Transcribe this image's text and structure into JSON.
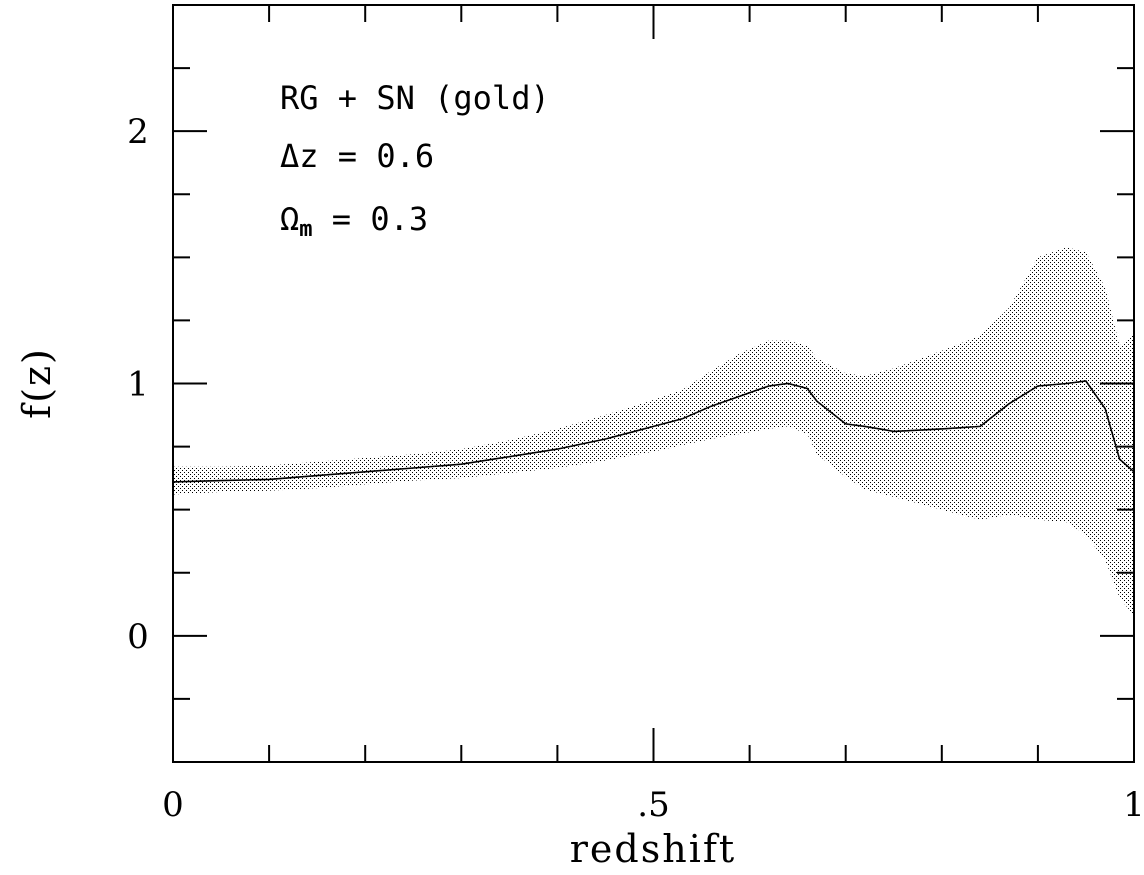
{
  "chart_data": {
    "type": "area",
    "xlabel": "redshift",
    "ylabel": "f(z)",
    "xlim": [
      0,
      1
    ],
    "ylim": [
      -0.5,
      2.5
    ],
    "x_ticks": {
      "major": [
        0,
        0.5,
        1
      ],
      "major_labels": [
        "0",
        ".5",
        "1"
      ],
      "minor": [
        0.1,
        0.2,
        0.3,
        0.4,
        0.6,
        0.7,
        0.8,
        0.9
      ]
    },
    "y_ticks": {
      "major": [
        0,
        1,
        2
      ],
      "major_labels": [
        "0",
        "1",
        "2"
      ],
      "minor": [
        -0.25,
        0.25,
        0.5,
        0.75,
        1.25,
        1.5,
        1.75,
        2.25
      ]
    },
    "annotations": {
      "line1": "RG + SN (gold)",
      "line2": "Δz = 0.6",
      "line3_symbol": "Ω",
      "line3_sub": "m",
      "line3_rest": " = 0.3"
    },
    "series": [
      {
        "x": [
          0.0,
          0.05,
          0.1,
          0.15,
          0.2,
          0.25,
          0.3,
          0.35,
          0.4,
          0.45,
          0.5,
          0.53,
          0.56,
          0.59,
          0.62,
          0.64,
          0.66,
          0.67,
          0.7,
          0.72,
          0.75,
          0.8,
          0.84,
          0.87,
          0.9,
          0.93,
          0.95,
          0.97,
          0.985,
          1.0
        ],
        "y": [
          0.61,
          0.615,
          0.62,
          0.635,
          0.65,
          0.665,
          0.68,
          0.71,
          0.74,
          0.78,
          0.83,
          0.86,
          0.91,
          0.95,
          0.99,
          1.0,
          0.98,
          0.93,
          0.84,
          0.83,
          0.81,
          0.82,
          0.83,
          0.92,
          0.99,
          1.0,
          1.01,
          0.9,
          0.7,
          0.65
        ],
        "lower": [
          0.56,
          0.57,
          0.575,
          0.585,
          0.6,
          0.615,
          0.625,
          0.645,
          0.665,
          0.695,
          0.73,
          0.755,
          0.78,
          0.8,
          0.82,
          0.83,
          0.8,
          0.72,
          0.63,
          0.58,
          0.55,
          0.5,
          0.46,
          0.48,
          0.46,
          0.45,
          0.4,
          0.3,
          0.15,
          0.08
        ],
        "upper": [
          0.67,
          0.67,
          0.675,
          0.69,
          0.705,
          0.72,
          0.74,
          0.775,
          0.82,
          0.875,
          0.935,
          0.975,
          1.05,
          1.12,
          1.17,
          1.17,
          1.15,
          1.1,
          1.04,
          1.03,
          1.06,
          1.13,
          1.19,
          1.3,
          1.5,
          1.54,
          1.52,
          1.38,
          1.15,
          1.2
        ]
      }
    ]
  }
}
